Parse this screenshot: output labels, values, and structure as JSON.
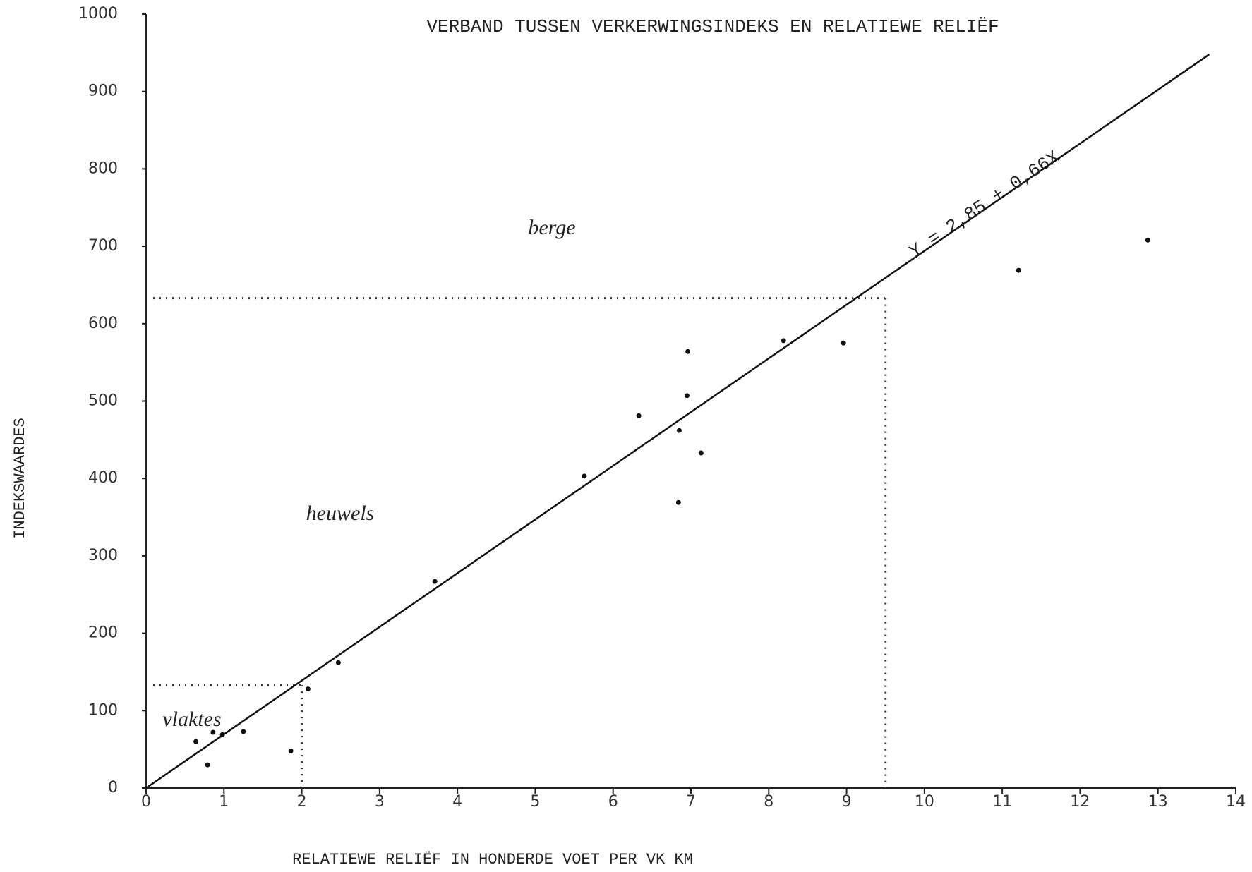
{
  "chart_data": {
    "type": "scatter",
    "title": "VERBAND TUSSEN VERKERWINGSINDEKS EN RELATIEWE RELIËF",
    "x_label": "RELATIEWE RELIËF IN HONDERDE VOET PER VK KM",
    "y_label": "INDEKSWAARDES",
    "x": [
      0.64,
      0.79,
      0.86,
      0.98,
      1.25,
      1.86,
      2.08,
      2.47,
      3.71,
      5.63,
      6.33,
      6.96,
      6.95,
      6.85,
      7.13,
      6.84,
      8.19,
      8.96,
      11.21,
      12.87
    ],
    "values": [
      60,
      30,
      72,
      69,
      73,
      48,
      128,
      162,
      267,
      403,
      481,
      564,
      507,
      462,
      433,
      369,
      578,
      575,
      669,
      708
    ],
    "color": "#111111",
    "fit": {
      "label": "Y = 2,85 + 0,66X",
      "x": [
        0,
        13.66
      ],
      "y": [
        0,
        948
      ]
    },
    "guides": [
      {
        "x": 9.5,
        "y": 633
      },
      {
        "x": 2,
        "y": 133
      }
    ],
    "annotations": [
      "berge",
      "heuwels",
      "vlaktes"
    ],
    "xlim": [
      0,
      14
    ],
    "ylim": [
      0,
      1000
    ],
    "xticks": [
      0,
      1,
      2,
      3,
      4,
      5,
      6,
      7,
      8,
      9,
      10,
      11,
      12,
      13,
      14
    ],
    "yticks": [
      0,
      100,
      200,
      300,
      400,
      500,
      600,
      700,
      800,
      900,
      1000
    ],
    "grid": false
  }
}
